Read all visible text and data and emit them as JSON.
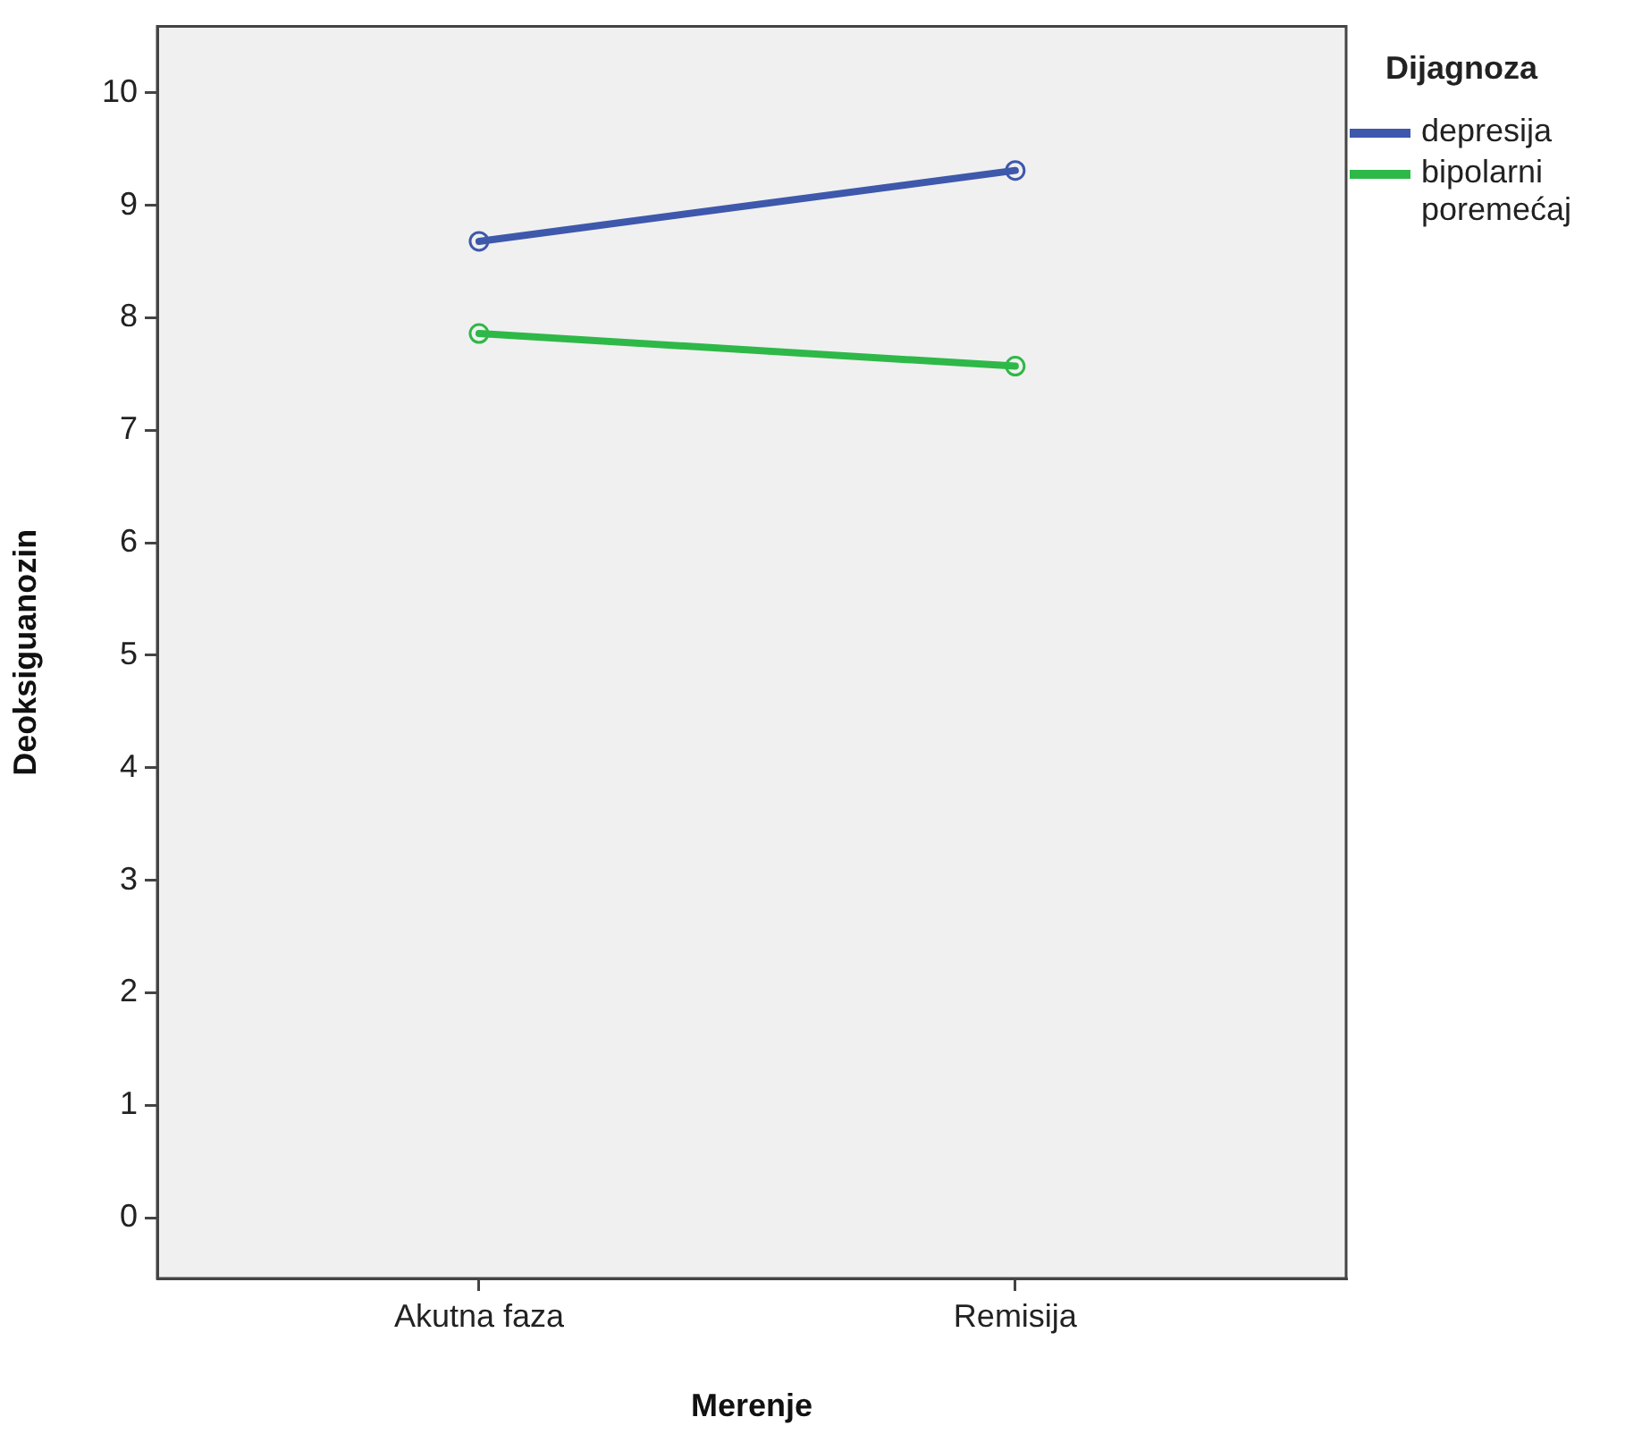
{
  "chart_data": {
    "type": "line",
    "xlabel": "Merenje",
    "ylabel": "Deoksiguanozin",
    "legend_title": "Dijagnoza",
    "legend": "right",
    "marker": "circle",
    "categories": [
      "Akutna faza",
      "Remisija"
    ],
    "series": [
      {
        "name": "depresija",
        "color": "#3e58ac",
        "values": [
          8.68,
          9.31
        ]
      },
      {
        "name": "bipolarni poremećaj",
        "color": "#2eb848",
        "values": [
          7.86,
          7.57
        ]
      }
    ],
    "ylim": [
      -0.54,
      10.59
    ],
    "yticks": [
      0,
      1,
      2,
      3,
      4,
      5,
      6,
      7,
      8,
      9,
      10
    ]
  }
}
